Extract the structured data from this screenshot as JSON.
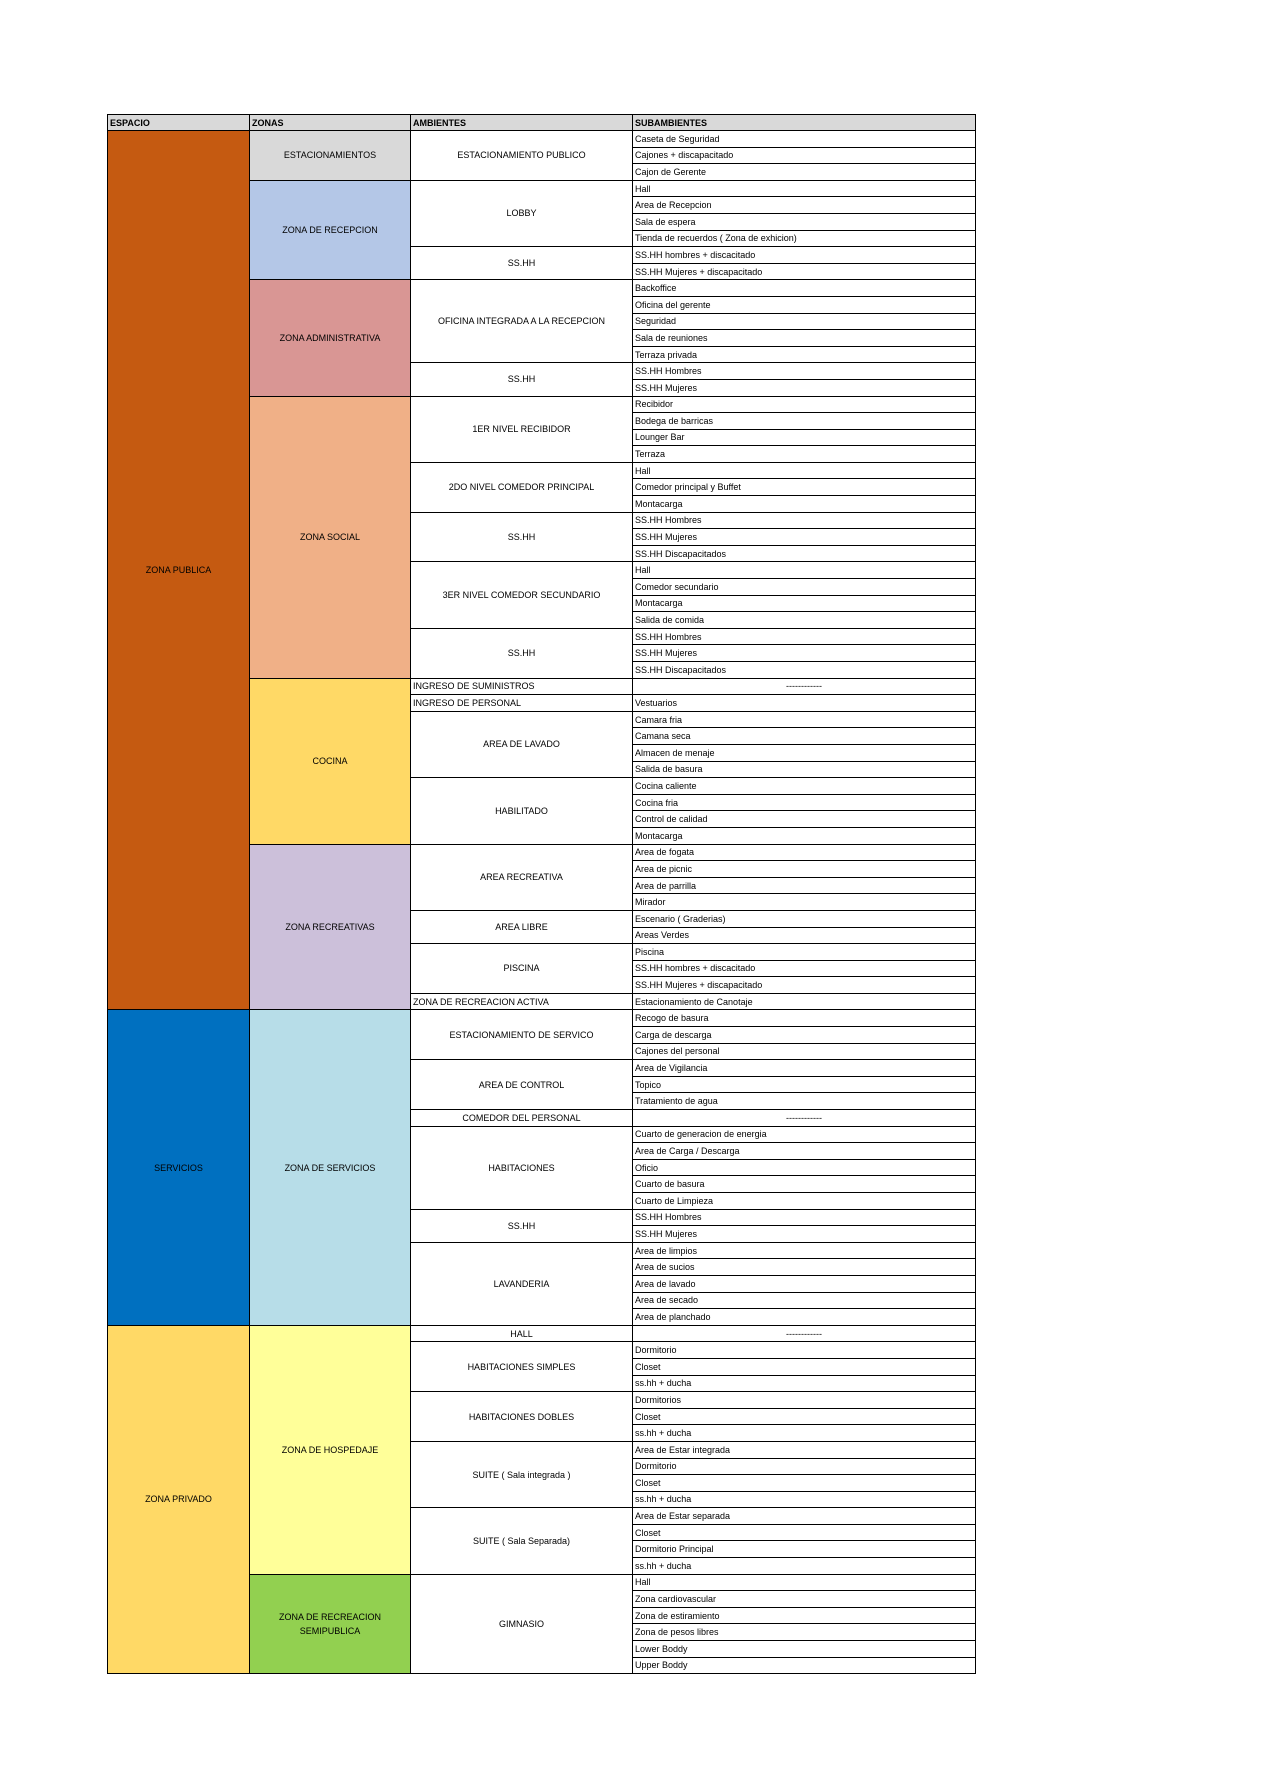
{
  "headers": [
    "ESPACIO",
    "ZONAS",
    "AMBIENTES",
    "SUBAMBIENTES"
  ],
  "espacios": [
    {
      "name": "ZONA PUBLICA",
      "color": "#c55a11",
      "text_color": "#000000",
      "zonas": [
        {
          "name": "ESTACIONAMIENTOS",
          "color": "#d9d9d9",
          "ambientes": [
            {
              "name": "ESTACIONAMIENTO PUBLICO",
              "align": "center",
              "subs": [
                "Caseta de Seguridad",
                "Cajones + discapacitado",
                "Cajon de Gerente"
              ]
            }
          ]
        },
        {
          "name": "ZONA DE RECEPCION",
          "color": "#b4c7e7",
          "ambientes": [
            {
              "name": "LOBBY",
              "align": "center",
              "subs": [
                "Hall",
                "Area de Recepcion",
                "Sala de espera",
                "Tienda de recuerdos ( Zona de exhicion)"
              ]
            },
            {
              "name": "SS.HH",
              "align": "center",
              "subs": [
                "SS.HH hombres + discacitado",
                "SS.HH Mujeres + discapacitado"
              ]
            }
          ]
        },
        {
          "name": "ZONA ADMINISTRATIVA",
          "color": "#d99694",
          "ambientes": [
            {
              "name": "OFICINA INTEGRADA A LA RECEPCION",
              "align": "center",
              "subs": [
                "Backoffice",
                "Oficina del gerente",
                "Seguridad",
                "Sala de reuniones",
                "Terraza privada"
              ]
            },
            {
              "name": "SS.HH",
              "align": "center",
              "subs": [
                "SS.HH Hombres",
                "SS.HH Mujeres"
              ]
            }
          ]
        },
        {
          "name": "ZONA SOCIAL",
          "color": "#f0b087",
          "ambientes": [
            {
              "name": "1ER NIVEL RECIBIDOR",
              "align": "center",
              "subs": [
                "Recibidor",
                "Bodega de barricas",
                "Lounger Bar",
                "Terraza"
              ]
            },
            {
              "name": "2DO NIVEL COMEDOR PRINCIPAL",
              "align": "center",
              "subs": [
                "Hall",
                "Comedor principal y Buffet",
                "Montacarga"
              ]
            },
            {
              "name": "SS.HH",
              "align": "center",
              "subs": [
                "SS.HH Hombres",
                "SS.HH Mujeres",
                "SS.HH Discapacitados"
              ]
            },
            {
              "name": "3ER NIVEL COMEDOR SECUNDARIO",
              "align": "center",
              "subs": [
                "Hall",
                "Comedor secundario",
                "Montacarga",
                "Salida de comida"
              ]
            },
            {
              "name": "SS.HH",
              "align": "center",
              "subs": [
                "SS.HH Hombres",
                "SS.HH Mujeres",
                "SS.HH Discapacitados"
              ]
            }
          ]
        },
        {
          "name": "COCINA",
          "color": "#ffd966",
          "ambientes": [
            {
              "name": "INGRESO DE SUMINISTROS",
              "align": "left",
              "subs": [
                "------------"
              ]
            },
            {
              "name": "INGRESO DE PERSONAL",
              "align": "left",
              "subs": [
                "Vestuarios"
              ]
            },
            {
              "name": "AREA DE LAVADO",
              "align": "center",
              "subs": [
                "Camara fria",
                "Camana seca",
                "Almacen de menaje",
                "Salida de basura"
              ]
            },
            {
              "name": "HABILITADO",
              "align": "center",
              "subs": [
                "Cocina caliente",
                "Cocina fria",
                "Control de calidad",
                "Montacarga"
              ]
            }
          ]
        },
        {
          "name": "ZONA RECREATIVAS",
          "color": "#ccc0da",
          "ambientes": [
            {
              "name": "AREA RECREATIVA",
              "align": "center",
              "subs": [
                "Area de fogata",
                "Area de picnic",
                "Area de parrilla",
                "Mirador"
              ]
            },
            {
              "name": "AREA LIBRE",
              "align": "center",
              "subs": [
                "Escenario ( Graderias)",
                "Areas Verdes"
              ]
            },
            {
              "name": "PISCINA",
              "align": "center",
              "subs": [
                "Piscina",
                "SS.HH hombres + discacitado",
                "SS.HH Mujeres + discapacitado"
              ]
            },
            {
              "name": "ZONA DE RECREACION ACTIVA",
              "align": "left",
              "subs": [
                "Estacionamiento de Canotaje"
              ]
            }
          ]
        }
      ]
    },
    {
      "name": "SERVICIOS",
      "color": "#0070c0",
      "text_color": "#000000",
      "zonas": [
        {
          "name": "ZONA DE SERVICIOS",
          "color": "#b7dde8",
          "ambientes": [
            {
              "name": "ESTACIONAMIENTO DE SERVICO",
              "align": "center",
              "subs": [
                "Recogo de basura",
                "Carga de descarga",
                "Cajones del personal"
              ]
            },
            {
              "name": "AREA DE CONTROL",
              "align": "center",
              "subs": [
                "Area de Vigilancia",
                "Topico",
                "Tratamiento de agua"
              ]
            },
            {
              "name": "COMEDOR DEL PERSONAL",
              "align": "center",
              "subs": [
                "------------"
              ]
            },
            {
              "name": "HABITACIONES",
              "align": "center",
              "subs": [
                "Cuarto de generacion de energia",
                "Area de Carga / Descarga",
                "Oficio",
                "Cuarto de basura",
                "Cuarto de Limpieza"
              ]
            },
            {
              "name": "SS.HH",
              "align": "center",
              "subs": [
                "SS.HH Hombres",
                "SS.HH Mujeres"
              ]
            },
            {
              "name": "LAVANDERIA",
              "align": "center",
              "subs": [
                "Area de limpios",
                "Area de sucios",
                "Area de lavado",
                "Area de secado",
                "Area de planchado"
              ]
            }
          ]
        }
      ]
    },
    {
      "name": "ZONA PRIVADO",
      "color": "#ffd966",
      "text_color": "#000000",
      "zonas": [
        {
          "name": "ZONA DE HOSPEDAJE",
          "color": "#ffff99",
          "ambientes": [
            {
              "name": "HALL",
              "align": "center",
              "subs": [
                "------------"
              ]
            },
            {
              "name": "HABITACIONES SIMPLES",
              "align": "center",
              "subs": [
                "Dormitorio",
                "Closet",
                "ss.hh + ducha"
              ]
            },
            {
              "name": "HABITACIONES DOBLES",
              "align": "center",
              "subs": [
                "Dormitorios",
                "Closet",
                "ss.hh + ducha"
              ]
            },
            {
              "name": "SUITE ( Sala integrada )",
              "align": "center",
              "subs": [
                "Area de Estar integrada",
                "Dormitorio",
                "Closet",
                "ss.hh + ducha"
              ]
            },
            {
              "name": "SUITE ( Sala Separada)",
              "align": "center",
              "subs": [
                "Area de Estar separada",
                "Closet",
                "Dormitorio Principal",
                "ss.hh + ducha"
              ]
            }
          ]
        },
        {
          "name": "ZONA DE RECREACION SEMIPUBLICA",
          "color": "#92d050",
          "ambientes": [
            {
              "name": "GIMNASIO",
              "align": "center",
              "subs": [
                "Hall",
                "Zona cardiovascular",
                "Zona de estiramiento",
                "Zona de pesos libres",
                "Lower Boddy",
                "Upper Boddy"
              ]
            }
          ]
        }
      ]
    }
  ]
}
